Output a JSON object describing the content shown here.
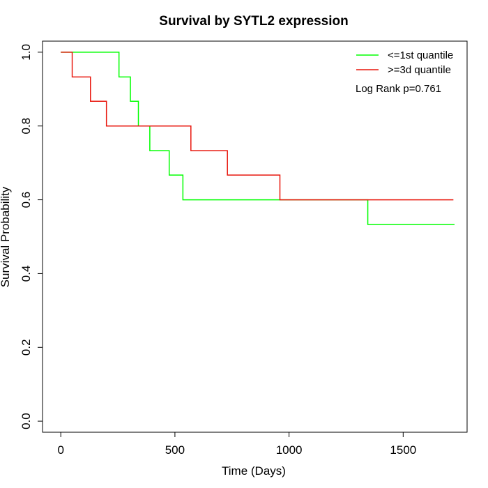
{
  "chart_data": {
    "type": "line",
    "title": "Survival by SYTL2 expression",
    "xlabel": "Time (Days)",
    "ylabel": "Survival Probability",
    "xlim": [
      -80,
      1780
    ],
    "ylim": [
      -0.03,
      1.03
    ],
    "xticks": [
      0,
      500,
      1000,
      1500
    ],
    "yticks": [
      0.0,
      0.2,
      0.4,
      0.6,
      0.8,
      1.0
    ],
    "xtick_labels": [
      "0",
      "500",
      "1000",
      "1500"
    ],
    "ytick_labels": [
      "0.0",
      "0.2",
      "0.4",
      "0.6",
      "0.8",
      "1.0"
    ],
    "grid": false,
    "legend_position": "top-right",
    "annotation": "Log Rank p=0.761",
    "series": [
      {
        "name": "<=1st quantile",
        "color": "#00ff00",
        "steps": [
          [
            0,
            1.0
          ],
          [
            255,
            0.933
          ],
          [
            305,
            0.867
          ],
          [
            340,
            0.8
          ],
          [
            390,
            0.733
          ],
          [
            475,
            0.667
          ],
          [
            535,
            0.6
          ],
          [
            1345,
            0.533
          ],
          [
            1725,
            0.533
          ]
        ]
      },
      {
        "name": ">=3d quantile",
        "color": "#e8160c",
        "steps": [
          [
            0,
            1.0
          ],
          [
            50,
            0.933
          ],
          [
            130,
            0.867
          ],
          [
            200,
            0.8
          ],
          [
            570,
            0.733
          ],
          [
            730,
            0.667
          ],
          [
            960,
            0.6
          ],
          [
            1720,
            0.6
          ]
        ]
      }
    ]
  }
}
